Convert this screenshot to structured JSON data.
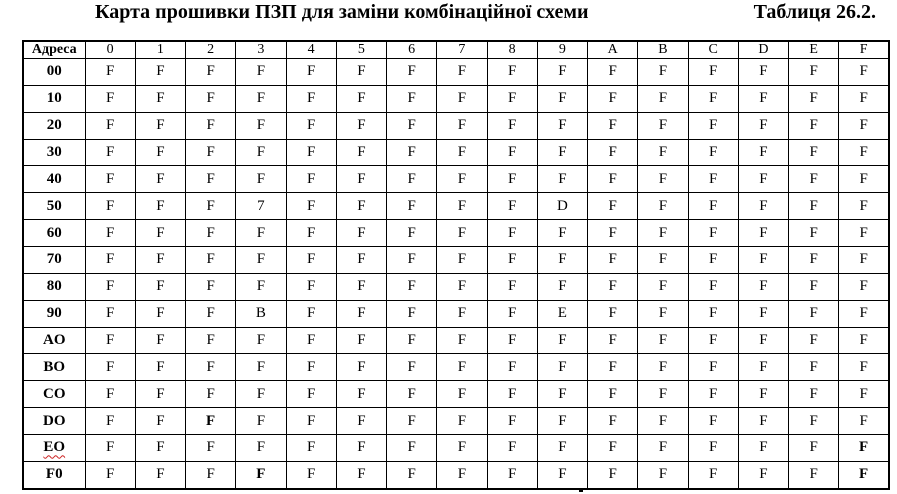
{
  "title": "Карта прошивки ПЗП для заміни комбінаційної схеми",
  "caption": "Таблиця 26.2.",
  "colors": {
    "border": "#000000",
    "text": "#000000",
    "background": "#ffffff",
    "spellcheck_underline": "#cc2222"
  },
  "table": {
    "header": [
      "Адреса",
      "0",
      "1",
      "2",
      "3",
      "4",
      "5",
      "6",
      "7",
      "8",
      "9",
      "A",
      "B",
      "C",
      "D",
      "E",
      "F"
    ],
    "rows": [
      {
        "label": "00",
        "cells": [
          "F",
          "F",
          "F",
          "F",
          "F",
          "F",
          "F",
          "F",
          "F",
          "F",
          "F",
          "F",
          "F",
          "F",
          "F",
          "F"
        ]
      },
      {
        "label": "10",
        "cells": [
          "F",
          "F",
          "F",
          "F",
          "F",
          "F",
          "F",
          "F",
          "F",
          "F",
          "F",
          "F",
          "F",
          "F",
          "F",
          "F"
        ]
      },
      {
        "label": "20",
        "cells": [
          "F",
          "F",
          "F",
          "F",
          "F",
          "F",
          "F",
          "F",
          "F",
          "F",
          "F",
          "F",
          "F",
          "F",
          "F",
          "F"
        ]
      },
      {
        "label": "30",
        "cells": [
          "F",
          "F",
          "F",
          "F",
          "F",
          "F",
          "F",
          "F",
          "F",
          "F",
          "F",
          "F",
          "F",
          "F",
          "F",
          "F"
        ]
      },
      {
        "label": "40",
        "cells": [
          "F",
          "F",
          "F",
          "F",
          "F",
          "F",
          "F",
          "F",
          "F",
          "F",
          "F",
          "F",
          "F",
          "F",
          "F",
          "F"
        ]
      },
      {
        "label": "50",
        "cells": [
          "F",
          "F",
          "F",
          "7",
          "F",
          "F",
          "F",
          "F",
          "F",
          "D",
          "F",
          "F",
          "F",
          "F",
          "F",
          "F"
        ]
      },
      {
        "label": "60",
        "cells": [
          "F",
          "F",
          "F",
          "F",
          "F",
          "F",
          "F",
          "F",
          "F",
          "F",
          "F",
          "F",
          "F",
          "F",
          "F",
          "F"
        ]
      },
      {
        "label": "70",
        "cells": [
          "F",
          "F",
          "F",
          "F",
          "F",
          "F",
          "F",
          "F",
          "F",
          "F",
          "F",
          "F",
          "F",
          "F",
          "F",
          "F"
        ]
      },
      {
        "label": "80",
        "cells": [
          "F",
          "F",
          "F",
          "F",
          "F",
          "F",
          "F",
          "F",
          "F",
          "F",
          "F",
          "F",
          "F",
          "F",
          "F",
          "F"
        ]
      },
      {
        "label": "90",
        "cells": [
          "F",
          "F",
          "F",
          "B",
          "F",
          "F",
          "F",
          "F",
          "F",
          "E",
          "F",
          "F",
          "F",
          "F",
          "F",
          "F"
        ]
      },
      {
        "label": "AO",
        "cells": [
          "F",
          "F",
          "F",
          "F",
          "F",
          "F",
          "F",
          "F",
          "F",
          "F",
          "F",
          "F",
          "F",
          "F",
          "F",
          "F"
        ]
      },
      {
        "label": "BO",
        "cells": [
          "F",
          "F",
          "F",
          "F",
          "F",
          "F",
          "F",
          "F",
          "F",
          "F",
          "F",
          "F",
          "F",
          "F",
          "F",
          "F"
        ]
      },
      {
        "label": "CO",
        "cells": [
          "F",
          "F",
          "F",
          "F",
          "F",
          "F",
          "F",
          "F",
          "F",
          "F",
          "F",
          "F",
          "F",
          "F",
          "F",
          "F"
        ]
      },
      {
        "label": "DO",
        "cells": [
          "F",
          "F",
          "F",
          "F",
          "F",
          "F",
          "F",
          "F",
          "F",
          "F",
          "F",
          "F",
          "F",
          "F",
          "F",
          "F"
        ],
        "bold_cells": [
          2
        ]
      },
      {
        "label": "EO",
        "cells": [
          "F",
          "F",
          "F",
          "F",
          "F",
          "F",
          "F",
          "F",
          "F",
          "F",
          "F",
          "F",
          "F",
          "F",
          "F",
          "F"
        ],
        "bold_cells": [
          15
        ],
        "spellcheck_underline": true
      },
      {
        "label": "F0",
        "cells": [
          "F",
          "F",
          "F",
          "F",
          "F",
          "F",
          "F",
          "F",
          "F",
          "F",
          "F",
          "F",
          "F",
          "F",
          "F",
          "F"
        ],
        "bold_cells": [
          3,
          15
        ]
      }
    ]
  }
}
